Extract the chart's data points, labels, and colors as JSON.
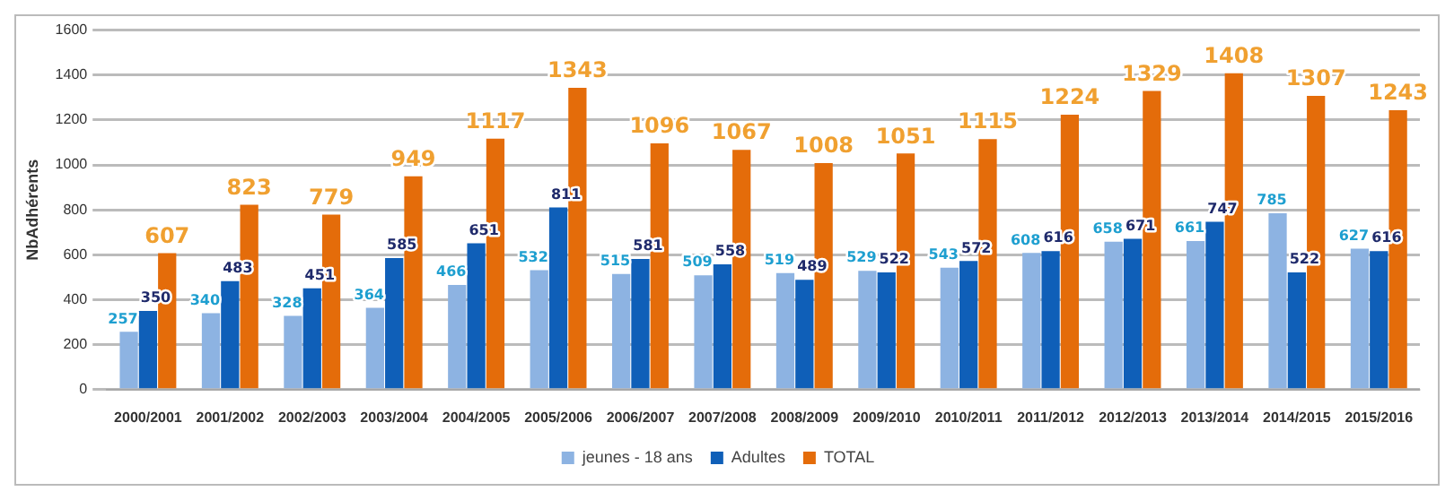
{
  "chart_data": {
    "type": "bar",
    "ylabel": "NbAdhérents",
    "categories": [
      "2000/2001",
      "2001/2002",
      "2002/2003",
      "2003/2004",
      "2004/2005",
      "2005/2006",
      "2006/2007",
      "2007/2008",
      "2008/2009",
      "2009/2010",
      "2010/2011",
      "2011/2012",
      "2012/2013",
      "2013/2014",
      "2014/2015",
      "2015/2016"
    ],
    "series": [
      {
        "name": "jeunes - 18 ans",
        "color": "#8db3e2",
        "values": [
          257,
          340,
          328,
          364,
          466,
          532,
          515,
          509,
          519,
          529,
          543,
          608,
          658,
          661,
          785,
          627
        ]
      },
      {
        "name": "Adultes",
        "color": "#0f5fb8",
        "values": [
          350,
          483,
          451,
          585,
          651,
          811,
          581,
          558,
          489,
          522,
          572,
          616,
          671,
          747,
          522,
          616
        ]
      },
      {
        "name": "TOTAL",
        "color": "#e46c0a",
        "values": [
          607,
          823,
          779,
          949,
          1117,
          1343,
          1096,
          1067,
          1008,
          1051,
          1115,
          1224,
          1329,
          1408,
          1307,
          1243
        ]
      }
    ],
    "ylim": [
      0,
      1600
    ],
    "yticks": [
      0,
      200,
      400,
      600,
      800,
      1000,
      1200,
      1400,
      1600
    ],
    "grid": "y",
    "legend": "bottom",
    "data_labels": true
  }
}
